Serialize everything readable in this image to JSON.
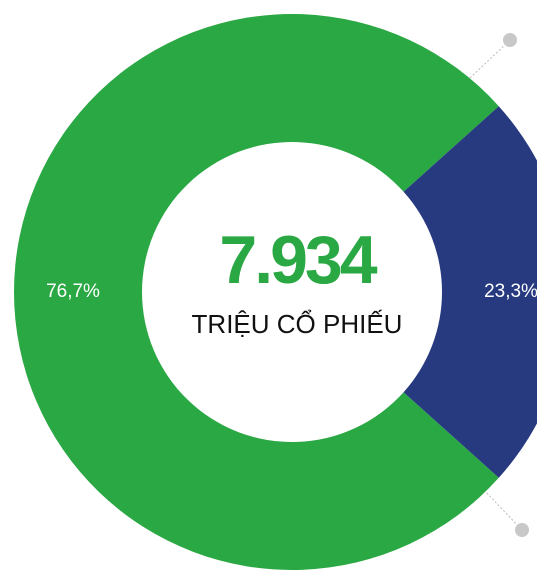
{
  "chart_data": {
    "type": "pie",
    "categories": [
      null,
      null
    ],
    "values": [
      76.7,
      23.3
    ],
    "value_labels": [
      "76,7%",
      "23,3%"
    ],
    "colors": [
      "#2aa844",
      "#273a80"
    ],
    "annotations": [
      "7.934",
      "TRIỆU CỔ PHIẾU"
    ]
  }
}
